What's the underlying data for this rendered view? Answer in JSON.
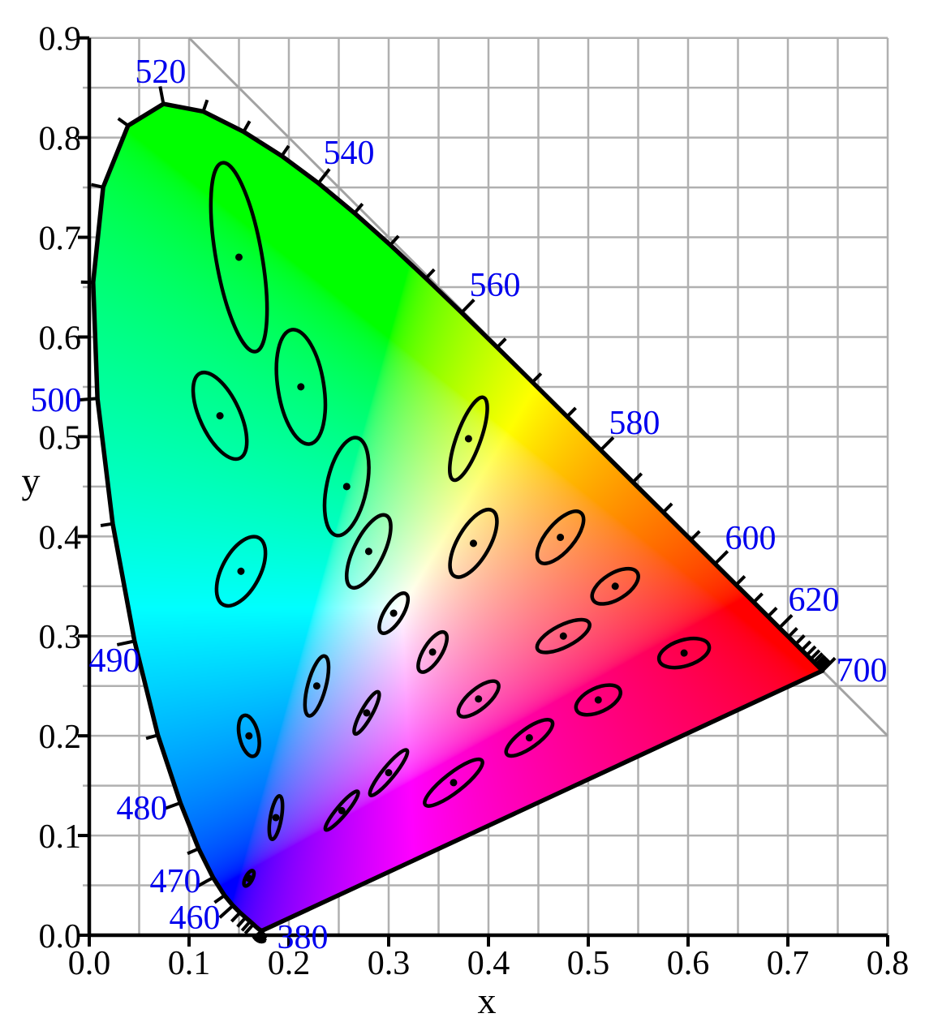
{
  "figure": {
    "kind": "CIE 1931 xy chromaticity diagram with MacAdam ellipses (ellipses drawn 10x actual size)",
    "colors": {
      "background": "#ffffff",
      "grid": "#b0b0b0",
      "diagonal_line": "#a3a3a3",
      "axis": "#000000",
      "locus_stroke": "#000000",
      "ellipse_stroke": "#000000",
      "wavelength_label_blue": "#0000ee"
    }
  },
  "chart_data": {
    "type": "scatter",
    "subtype": "chromaticity-diagram-with-macadam-ellipses",
    "title": "",
    "xlabel": "x",
    "ylabel": "y",
    "xlim": [
      0.0,
      0.8
    ],
    "ylim": [
      0.0,
      0.9
    ],
    "grid_step": 0.05,
    "axis_tick_step": 0.1,
    "x_tick_labels": [
      "0.0",
      "0.1",
      "0.2",
      "0.3",
      "0.4",
      "0.5",
      "0.6",
      "0.7",
      "0.8"
    ],
    "y_tick_labels": [
      "0.0",
      "0.1",
      "0.2",
      "0.3",
      "0.4",
      "0.5",
      "0.6",
      "0.7",
      "0.8",
      "0.9"
    ],
    "legend": "none",
    "grid": "on",
    "diagonal_line": {
      "from": [
        0.1,
        0.9
      ],
      "to": [
        0.8,
        0.2
      ],
      "meaning": "line x+y=1"
    },
    "ellipse_magnification": 10,
    "labeled_wavelengths": [
      380,
      460,
      470,
      480,
      490,
      500,
      520,
      540,
      560,
      580,
      600,
      620,
      700
    ],
    "wavelength_labels": [
      {
        "nm": "380",
        "x": 0.2138,
        "y": -0.0016
      },
      {
        "nm": "460",
        "x": 0.1057,
        "y": 0.0179
      },
      {
        "nm": "470",
        "x": 0.0862,
        "y": 0.0545
      },
      {
        "nm": "480",
        "x": 0.0528,
        "y": 0.1277
      },
      {
        "nm": "490",
        "x": 0.0252,
        "y": 0.2758
      },
      {
        "nm": "500",
        "x": -0.0333,
        "y": 0.537
      },
      {
        "nm": "520",
        "x": 0.0715,
        "y": 0.8665
      },
      {
        "nm": "540",
        "x": 0.2602,
        "y": 0.7852
      },
      {
        "nm": "560",
        "x": 0.4065,
        "y": 0.6525
      },
      {
        "nm": "580",
        "x": 0.5463,
        "y": 0.5142
      },
      {
        "nm": "600",
        "x": 0.6626,
        "y": 0.3987
      },
      {
        "nm": "620",
        "x": 0.726,
        "y": 0.3369
      },
      {
        "nm": "700",
        "x": 0.774,
        "y": 0.2661
      }
    ],
    "spectral_locus": [
      [
        380,
        0.1741,
        0.005
      ],
      [
        385,
        0.174,
        0.005
      ],
      [
        390,
        0.1738,
        0.0049
      ],
      [
        395,
        0.1736,
        0.0049
      ],
      [
        400,
        0.1733,
        0.0048
      ],
      [
        405,
        0.173,
        0.0048
      ],
      [
        410,
        0.1726,
        0.0048
      ],
      [
        415,
        0.1721,
        0.0048
      ],
      [
        420,
        0.1714,
        0.0051
      ],
      [
        425,
        0.1703,
        0.0058
      ],
      [
        430,
        0.1689,
        0.0069
      ],
      [
        435,
        0.1669,
        0.0086
      ],
      [
        440,
        0.1644,
        0.0109
      ],
      [
        445,
        0.1611,
        0.0138
      ],
      [
        450,
        0.1566,
        0.0177
      ],
      [
        455,
        0.151,
        0.0227
      ],
      [
        460,
        0.144,
        0.0297
      ],
      [
        465,
        0.1355,
        0.0399
      ],
      [
        470,
        0.1241,
        0.0578
      ],
      [
        475,
        0.1096,
        0.0868
      ],
      [
        480,
        0.0913,
        0.1327
      ],
      [
        485,
        0.0687,
        0.2007
      ],
      [
        490,
        0.0454,
        0.295
      ],
      [
        495,
        0.0235,
        0.4127
      ],
      [
        500,
        0.0082,
        0.5384
      ],
      [
        505,
        0.0039,
        0.6548
      ],
      [
        510,
        0.0139,
        0.7502
      ],
      [
        515,
        0.0389,
        0.812
      ],
      [
        520,
        0.0743,
        0.8338
      ],
      [
        525,
        0.1142,
        0.8262
      ],
      [
        530,
        0.1547,
        0.8059
      ],
      [
        535,
        0.1929,
        0.7816
      ],
      [
        540,
        0.2296,
        0.7543
      ],
      [
        545,
        0.2658,
        0.7243
      ],
      [
        550,
        0.3016,
        0.6923
      ],
      [
        555,
        0.3373,
        0.6589
      ],
      [
        560,
        0.3731,
        0.6245
      ],
      [
        565,
        0.4087,
        0.5896
      ],
      [
        570,
        0.4441,
        0.5547
      ],
      [
        575,
        0.4788,
        0.5202
      ],
      [
        580,
        0.5125,
        0.4866
      ],
      [
        585,
        0.5448,
        0.4544
      ],
      [
        590,
        0.5752,
        0.4242
      ],
      [
        595,
        0.6029,
        0.3965
      ],
      [
        600,
        0.627,
        0.3725
      ],
      [
        605,
        0.6482,
        0.3514
      ],
      [
        610,
        0.6658,
        0.334
      ],
      [
        615,
        0.6801,
        0.3197
      ],
      [
        620,
        0.6915,
        0.3083
      ],
      [
        625,
        0.7006,
        0.2993
      ],
      [
        630,
        0.7079,
        0.292
      ],
      [
        635,
        0.714,
        0.2859
      ],
      [
        640,
        0.719,
        0.2809
      ],
      [
        645,
        0.723,
        0.277
      ],
      [
        650,
        0.726,
        0.274
      ],
      [
        655,
        0.7283,
        0.2717
      ],
      [
        660,
        0.73,
        0.27
      ],
      [
        665,
        0.7311,
        0.2689
      ],
      [
        670,
        0.732,
        0.268
      ],
      [
        675,
        0.7327,
        0.2673
      ],
      [
        680,
        0.7334,
        0.2666
      ],
      [
        685,
        0.734,
        0.266
      ],
      [
        690,
        0.7344,
        0.2656
      ],
      [
        695,
        0.7346,
        0.2654
      ],
      [
        700,
        0.7347,
        0.2653
      ]
    ],
    "macadam_ellipses": [
      {
        "n": 1,
        "x": 0.16,
        "y": 0.057,
        "a": 0.00085,
        "b": 0.00035,
        "theta_deg": 62
      },
      {
        "n": 2,
        "x": 0.187,
        "y": 0.118,
        "a": 0.0022,
        "b": 0.00055,
        "theta_deg": 80
      },
      {
        "n": 3,
        "x": 0.253,
        "y": 0.125,
        "a": 0.0025,
        "b": 0.0005,
        "theta_deg": 50
      },
      {
        "n": 4,
        "x": 0.15,
        "y": 0.68,
        "a": 0.0096,
        "b": 0.0023,
        "theta_deg": 100
      },
      {
        "n": 5,
        "x": 0.131,
        "y": 0.521,
        "a": 0.0047,
        "b": 0.002,
        "theta_deg": 115
      },
      {
        "n": 6,
        "x": 0.212,
        "y": 0.55,
        "a": 0.0058,
        "b": 0.0023,
        "theta_deg": 99
      },
      {
        "n": 7,
        "x": 0.258,
        "y": 0.45,
        "a": 0.005,
        "b": 0.002,
        "theta_deg": 78
      },
      {
        "n": 8,
        "x": 0.152,
        "y": 0.365,
        "a": 0.0038,
        "b": 0.0019,
        "theta_deg": 62
      },
      {
        "n": 9,
        "x": 0.28,
        "y": 0.385,
        "a": 0.004,
        "b": 0.0015,
        "theta_deg": 64
      },
      {
        "n": 10,
        "x": 0.38,
        "y": 0.498,
        "a": 0.0044,
        "b": 0.0012,
        "theta_deg": 70
      },
      {
        "n": 11,
        "x": 0.16,
        "y": 0.2,
        "a": 0.0021,
        "b": 0.00095,
        "theta_deg": 103
      },
      {
        "n": 12,
        "x": 0.228,
        "y": 0.25,
        "a": 0.0031,
        "b": 0.0009,
        "theta_deg": 75
      },
      {
        "n": 13,
        "x": 0.305,
        "y": 0.323,
        "a": 0.0023,
        "b": 0.0009,
        "theta_deg": 58
      },
      {
        "n": 14,
        "x": 0.385,
        "y": 0.393,
        "a": 0.0038,
        "b": 0.0016,
        "theta_deg": 60
      },
      {
        "n": 15,
        "x": 0.472,
        "y": 0.399,
        "a": 0.0032,
        "b": 0.0014,
        "theta_deg": 50
      },
      {
        "n": 16,
        "x": 0.527,
        "y": 0.35,
        "a": 0.0026,
        "b": 0.0013,
        "theta_deg": 32
      },
      {
        "n": 17,
        "x": 0.475,
        "y": 0.3,
        "a": 0.0029,
        "b": 0.0011,
        "theta_deg": 27
      },
      {
        "n": 18,
        "x": 0.51,
        "y": 0.236,
        "a": 0.0024,
        "b": 0.0012,
        "theta_deg": 25
      },
      {
        "n": 19,
        "x": 0.596,
        "y": 0.283,
        "a": 0.0026,
        "b": 0.0013,
        "theta_deg": 17
      },
      {
        "n": 20,
        "x": 0.344,
        "y": 0.284,
        "a": 0.0023,
        "b": 0.0009,
        "theta_deg": 58
      },
      {
        "n": 21,
        "x": 0.39,
        "y": 0.237,
        "a": 0.0025,
        "b": 0.001,
        "theta_deg": 40
      },
      {
        "n": 22,
        "x": 0.441,
        "y": 0.198,
        "a": 0.0028,
        "b": 0.00095,
        "theta_deg": 36
      },
      {
        "n": 23,
        "x": 0.278,
        "y": 0.223,
        "a": 0.0024,
        "b": 0.00055,
        "theta_deg": 61
      },
      {
        "n": 24,
        "x": 0.3,
        "y": 0.163,
        "a": 0.0029,
        "b": 0.0006,
        "theta_deg": 51
      },
      {
        "n": 25,
        "x": 0.365,
        "y": 0.153,
        "a": 0.0036,
        "b": 0.00095,
        "theta_deg": 38
      }
    ]
  }
}
